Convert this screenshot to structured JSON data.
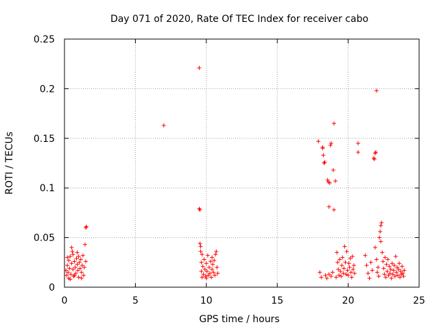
{
  "chart_data": {
    "type": "scatter",
    "title": "Day 071 of 2020, Rate Of TEC Index for receiver cabo",
    "xlabel": "GPS time / hours",
    "ylabel": "ROTI / TECUs",
    "xlim": [
      0,
      25
    ],
    "ylim": [
      0,
      0.25
    ],
    "x_ticks": [
      "0",
      "5",
      "10",
      "15",
      "20",
      "25"
    ],
    "y_ticks": [
      "0",
      "0.05",
      "0.1",
      "0.15",
      "0.2",
      "0.25"
    ],
    "grid": true,
    "marker": "plus",
    "color": "#ff0000",
    "points": [
      [
        0.1,
        0.017
      ],
      [
        0.15,
        0.012
      ],
      [
        0.2,
        0.022
      ],
      [
        0.25,
        0.015
      ],
      [
        0.3,
        0.027
      ],
      [
        0.3,
        0.009
      ],
      [
        0.35,
        0.019
      ],
      [
        0.4,
        0.031
      ],
      [
        0.45,
        0.013
      ],
      [
        0.5,
        0.024
      ],
      [
        0.5,
        0.04
      ],
      [
        0.55,
        0.036
      ],
      [
        0.6,
        0.018
      ],
      [
        0.6,
        0.033
      ],
      [
        0.65,
        0.011
      ],
      [
        0.7,
        0.026
      ],
      [
        0.75,
        0.02
      ],
      [
        0.8,
        0.014
      ],
      [
        0.85,
        0.029
      ],
      [
        0.9,
        0.023
      ],
      [
        0.95,
        0.017
      ],
      [
        1.0,
        0.031
      ],
      [
        1.0,
        0.01
      ],
      [
        1.05,
        0.025
      ],
      [
        1.1,
        0.019
      ],
      [
        1.15,
        0.028
      ],
      [
        1.2,
        0.015
      ],
      [
        1.25,
        0.022
      ],
      [
        1.3,
        0.032
      ],
      [
        1.35,
        0.012
      ],
      [
        1.4,
        0.02
      ],
      [
        1.45,
        0.043
      ],
      [
        1.5,
        0.06
      ],
      [
        1.55,
        0.061
      ],
      [
        1.5,
        0.026
      ],
      [
        0.2,
        0.03
      ],
      [
        0.4,
        0.008
      ],
      [
        0.7,
        0.012
      ],
      [
        0.9,
        0.035
      ],
      [
        1.2,
        0.009
      ],
      [
        7.0,
        0.163
      ],
      [
        9.5,
        0.221
      ],
      [
        9.5,
        0.079
      ],
      [
        9.55,
        0.078
      ],
      [
        9.55,
        0.044
      ],
      [
        9.6,
        0.041
      ],
      [
        9.6,
        0.036
      ],
      [
        9.65,
        0.016
      ],
      [
        9.7,
        0.01
      ],
      [
        9.7,
        0.033
      ],
      [
        9.75,
        0.021
      ],
      [
        9.8,
        0.013
      ],
      [
        9.85,
        0.028
      ],
      [
        9.9,
        0.018
      ],
      [
        9.95,
        0.011
      ],
      [
        10.0,
        0.024
      ],
      [
        10.05,
        0.016
      ],
      [
        10.1,
        0.032
      ],
      [
        10.15,
        0.012
      ],
      [
        10.2,
        0.02
      ],
      [
        10.25,
        0.014
      ],
      [
        10.3,
        0.026
      ],
      [
        10.35,
        0.01
      ],
      [
        10.4,
        0.018
      ],
      [
        10.45,
        0.023
      ],
      [
        10.5,
        0.015
      ],
      [
        10.55,
        0.027
      ],
      [
        10.6,
        0.012
      ],
      [
        10.65,
        0.033
      ],
      [
        10.7,
        0.036
      ],
      [
        10.75,
        0.02
      ],
      [
        10.8,
        0.014
      ],
      [
        9.65,
        0.025
      ],
      [
        10.0,
        0.009
      ],
      [
        10.4,
        0.03
      ],
      [
        17.9,
        0.147
      ],
      [
        18.0,
        0.015
      ],
      [
        18.1,
        0.01
      ],
      [
        18.2,
        0.14
      ],
      [
        18.2,
        0.141
      ],
      [
        18.25,
        0.133
      ],
      [
        18.3,
        0.125
      ],
      [
        18.35,
        0.126
      ],
      [
        18.4,
        0.012
      ],
      [
        18.5,
        0.009
      ],
      [
        18.55,
        0.108
      ],
      [
        18.6,
        0.106
      ],
      [
        18.65,
        0.081
      ],
      [
        18.7,
        0.105
      ],
      [
        18.75,
        0.143
      ],
      [
        18.8,
        0.145
      ],
      [
        18.65,
        0.013
      ],
      [
        18.8,
        0.011
      ],
      [
        18.9,
        0.015
      ],
      [
        18.95,
        0.118
      ],
      [
        19.0,
        0.165
      ],
      [
        19.0,
        0.078
      ],
      [
        19.1,
        0.107
      ],
      [
        19.15,
        0.01
      ],
      [
        19.2,
        0.035
      ],
      [
        19.25,
        0.025
      ],
      [
        19.3,
        0.018
      ],
      [
        19.35,
        0.012
      ],
      [
        19.4,
        0.028
      ],
      [
        19.45,
        0.016
      ],
      [
        19.5,
        0.011
      ],
      [
        19.55,
        0.022
      ],
      [
        19.6,
        0.03
      ],
      [
        19.65,
        0.014
      ],
      [
        19.7,
        0.019
      ],
      [
        19.75,
        0.041
      ],
      [
        19.8,
        0.025
      ],
      [
        19.85,
        0.013
      ],
      [
        19.9,
        0.036
      ],
      [
        19.95,
        0.017
      ],
      [
        20.0,
        0.012
      ],
      [
        20.05,
        0.024
      ],
      [
        20.1,
        0.02
      ],
      [
        20.15,
        0.029
      ],
      [
        20.2,
        0.015
      ],
      [
        20.25,
        0.01
      ],
      [
        20.3,
        0.031
      ],
      [
        20.35,
        0.018
      ],
      [
        20.4,
        0.022
      ],
      [
        20.45,
        0.014
      ],
      [
        20.7,
        0.145
      ],
      [
        20.7,
        0.136
      ],
      [
        21.2,
        0.032
      ],
      [
        21.3,
        0.022
      ],
      [
        21.4,
        0.014
      ],
      [
        21.5,
        0.009
      ],
      [
        21.6,
        0.025
      ],
      [
        21.7,
        0.017
      ],
      [
        21.8,
        0.13
      ],
      [
        21.85,
        0.129
      ],
      [
        21.9,
        0.135
      ],
      [
        21.95,
        0.136
      ],
      [
        22.0,
        0.198
      ],
      [
        21.9,
        0.04
      ],
      [
        22.0,
        0.028
      ],
      [
        22.05,
        0.015
      ],
      [
        22.1,
        0.02
      ],
      [
        22.15,
        0.011
      ],
      [
        22.2,
        0.05
      ],
      [
        22.25,
        0.056
      ],
      [
        22.3,
        0.062
      ],
      [
        22.35,
        0.065
      ],
      [
        22.3,
        0.046
      ],
      [
        22.4,
        0.035
      ],
      [
        22.45,
        0.026
      ],
      [
        22.5,
        0.019
      ],
      [
        22.55,
        0.013
      ],
      [
        22.6,
        0.03
      ],
      [
        22.65,
        0.01
      ],
      [
        22.7,
        0.023
      ],
      [
        22.75,
        0.016
      ],
      [
        22.8,
        0.028
      ],
      [
        22.85,
        0.012
      ],
      [
        22.9,
        0.021
      ],
      [
        22.95,
        0.014
      ],
      [
        23.0,
        0.018
      ],
      [
        23.05,
        0.009
      ],
      [
        23.1,
        0.024
      ],
      [
        23.15,
        0.013
      ],
      [
        23.2,
        0.017
      ],
      [
        23.25,
        0.022
      ],
      [
        23.3,
        0.011
      ],
      [
        23.35,
        0.031
      ],
      [
        23.4,
        0.015
      ],
      [
        23.45,
        0.02
      ],
      [
        23.5,
        0.012
      ],
      [
        23.55,
        0.018
      ],
      [
        23.6,
        0.024
      ],
      [
        23.65,
        0.01
      ],
      [
        23.7,
        0.016
      ],
      [
        23.75,
        0.013
      ],
      [
        23.8,
        0.021
      ],
      [
        23.85,
        0.014
      ],
      [
        23.9,
        0.011
      ],
      [
        23.95,
        0.017
      ]
    ]
  }
}
